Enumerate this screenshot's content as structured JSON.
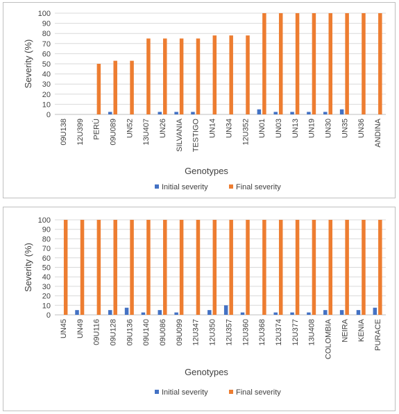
{
  "colors": {
    "initial": "#4472C4",
    "final": "#ED7D31"
  },
  "chart_data": [
    {
      "type": "bar",
      "title": "",
      "xlabel": "Genotypes",
      "ylabel": "Severity (%)",
      "ylim": [
        0,
        100
      ],
      "yticks": [
        0,
        10,
        20,
        30,
        40,
        50,
        60,
        70,
        80,
        90,
        100
      ],
      "grid": true,
      "legend_position": "bottom",
      "categories": [
        "09U138",
        "12U399",
        "PERÚ",
        "09U089",
        "UN52",
        "13U407",
        "UN26",
        "SILVANIA",
        "TESTIGO",
        "UN14",
        "UN34",
        "12U352",
        "UN01",
        "UN03",
        "UN13",
        "UN19",
        "UN30",
        "UN35",
        "UN36",
        "ANDINA"
      ],
      "series": [
        {
          "name": "Initial severity",
          "values": [
            0,
            0,
            0,
            2.5,
            0,
            0,
            2.5,
            2.5,
            2.5,
            0,
            0,
            0,
            5,
            2.5,
            2.5,
            2.5,
            2.5,
            5,
            0,
            0
          ]
        },
        {
          "name": "Final severity",
          "values": [
            0,
            0,
            50,
            53,
            53,
            75,
            75,
            75,
            75,
            78,
            78,
            78,
            100,
            100,
            100,
            100,
            100,
            100,
            100,
            100
          ]
        }
      ]
    },
    {
      "type": "bar",
      "title": "",
      "xlabel": "Genotypes",
      "ylabel": "Severity  (%)",
      "ylim": [
        0,
        100
      ],
      "yticks": [
        0,
        10,
        20,
        30,
        40,
        50,
        60,
        70,
        80,
        90,
        100
      ],
      "grid": true,
      "legend_position": "bottom",
      "categories": [
        "UN45",
        "UN49",
        "09U116",
        "09U128",
        "09U136",
        "09U140",
        "09U086",
        "09U099",
        "12U347",
        "12U350",
        "12U357",
        "12U360",
        "12U368",
        "12U374",
        "12U377",
        "13U408",
        "COLOMBIA",
        "NEIRA",
        "KENIA",
        "PURACE"
      ],
      "series": [
        {
          "name": "Initial severity",
          "values": [
            0,
            5,
            0,
            5,
            7.5,
            2.5,
            5,
            2.5,
            0,
            5,
            10,
            2.5,
            0,
            2.5,
            2.5,
            2.5,
            5,
            5,
            5,
            7.5
          ]
        },
        {
          "name": "Final severity",
          "values": [
            100,
            100,
            100,
            100,
            100,
            100,
            100,
            100,
            100,
            100,
            100,
            100,
            100,
            100,
            100,
            100,
            100,
            100,
            100,
            100
          ]
        }
      ]
    }
  ]
}
